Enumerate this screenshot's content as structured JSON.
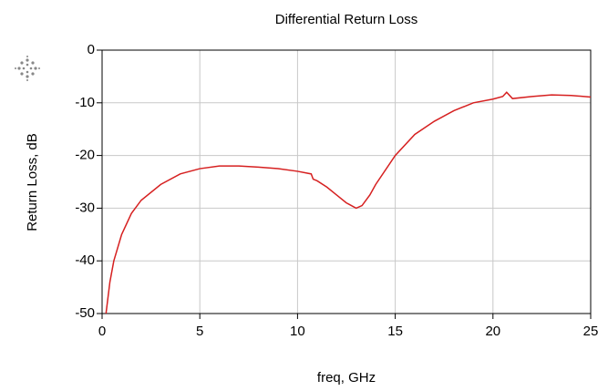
{
  "chart_data": {
    "type": "line",
    "title": "Differential Return Loss",
    "xlabel": "freq, GHz",
    "ylabel": "Return Loss, dB",
    "xlim": [
      0,
      25
    ],
    "xticks": [
      0,
      5,
      10,
      15,
      20,
      25
    ],
    "ylim": [
      -50,
      0
    ],
    "yticks": [
      -50,
      -40,
      -30,
      -20,
      -10,
      0
    ],
    "grid": true,
    "series": [
      {
        "name": "Differential Return Loss",
        "color": "#d62020",
        "x": [
          0.2,
          0.4,
          0.6,
          1,
          1.5,
          2,
          3,
          4,
          5,
          6,
          7,
          8,
          9,
          10,
          10.7,
          10.8,
          11,
          11.5,
          12,
          12.5,
          13,
          13.3,
          13.7,
          14,
          15,
          16,
          17,
          18,
          19,
          20,
          20.5,
          20.7,
          21,
          22,
          23,
          24,
          25
        ],
        "values": [
          -50,
          -44,
          -40,
          -35,
          -31,
          -28.5,
          -25.5,
          -23.5,
          -22.5,
          -22,
          -22,
          -22.2,
          -22.5,
          -23,
          -23.5,
          -24.5,
          -24.8,
          -26,
          -27.5,
          -29,
          -30,
          -29.5,
          -27.5,
          -25.5,
          -20,
          -16,
          -13.5,
          -11.5,
          -10,
          -9.3,
          -8.8,
          -8,
          -9.2,
          -8.8,
          -8.5,
          -8.6,
          -8.9
        ]
      }
    ]
  }
}
